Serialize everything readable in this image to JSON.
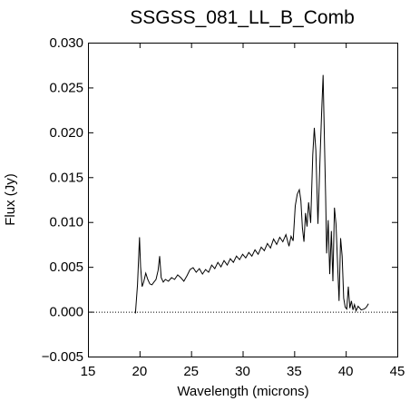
{
  "chart_data": {
    "type": "line",
    "title": "SSGSS_081_LL_B_Comb",
    "xlabel": "Wavelength (microns)",
    "ylabel": "Flux (Jy)",
    "xlim": [
      15,
      45
    ],
    "ylim": [
      -0.005,
      0.03
    ],
    "x_ticks": [
      15,
      20,
      25,
      30,
      35,
      40,
      45
    ],
    "x_tick_labels": [
      "15",
      "20",
      "25",
      "30",
      "35",
      "40",
      "45"
    ],
    "y_ticks": [
      -0.005,
      0.0,
      0.005,
      0.01,
      0.015,
      0.02,
      0.025,
      0.03
    ],
    "y_tick_labels": [
      "−0.005",
      "0.000",
      "0.005",
      "0.010",
      "0.015",
      "0.020",
      "0.025",
      "0.030"
    ],
    "grid": false,
    "legend": false,
    "reference_line": {
      "y": 0.0,
      "style": "dotted"
    },
    "line_color": "#000000",
    "series": [
      {
        "x": [
          19.6,
          19.8,
          20.0,
          20.1,
          20.25,
          20.4,
          20.6,
          20.8,
          21.0,
          21.2,
          21.4,
          21.6,
          21.8,
          21.95,
          22.1,
          22.3,
          22.5,
          22.8,
          23.1,
          23.4,
          23.7,
          24.0,
          24.3,
          24.6,
          24.9,
          25.2,
          25.5,
          25.8,
          26.1,
          26.4,
          26.7,
          27.0,
          27.3,
          27.6,
          27.9,
          28.2,
          28.5,
          28.8,
          29.1,
          29.4,
          29.7,
          30.0,
          30.3,
          30.6,
          30.9,
          31.2,
          31.5,
          31.8,
          32.1,
          32.4,
          32.7,
          33.0,
          33.3,
          33.6,
          33.9,
          34.2,
          34.5,
          34.7,
          34.9,
          35.1,
          35.3,
          35.5,
          35.65,
          35.8,
          35.95,
          36.1,
          36.25,
          36.4,
          36.6,
          36.8,
          36.95,
          37.1,
          37.3,
          37.5,
          37.65,
          37.8,
          37.95,
          38.05,
          38.15,
          38.3,
          38.45,
          38.6,
          38.75,
          38.9,
          39.05,
          39.2,
          39.35,
          39.5,
          39.65,
          39.8,
          39.95,
          40.1,
          40.25,
          40.4,
          40.55,
          40.7,
          40.85,
          41.0,
          41.2,
          41.5,
          41.8,
          42.0,
          42.2
        ],
        "y": [
          -0.0002,
          0.003,
          0.0083,
          0.005,
          0.0028,
          0.0033,
          0.0043,
          0.0036,
          0.0031,
          0.003,
          0.0033,
          0.0036,
          0.0046,
          0.0062,
          0.0038,
          0.0033,
          0.0036,
          0.0034,
          0.0038,
          0.0036,
          0.0041,
          0.0038,
          0.0034,
          0.004,
          0.0047,
          0.0049,
          0.0044,
          0.0048,
          0.0042,
          0.0047,
          0.0044,
          0.0052,
          0.0048,
          0.0055,
          0.005,
          0.0057,
          0.0052,
          0.0059,
          0.0055,
          0.0062,
          0.0058,
          0.0064,
          0.006,
          0.0066,
          0.0062,
          0.0069,
          0.0064,
          0.0072,
          0.0068,
          0.0076,
          0.0071,
          0.0081,
          0.0075,
          0.0083,
          0.0078,
          0.0086,
          0.0073,
          0.0084,
          0.0079,
          0.0118,
          0.0131,
          0.0136,
          0.0124,
          0.0093,
          0.0078,
          0.011,
          0.0095,
          0.0122,
          0.0099,
          0.0175,
          0.0205,
          0.018,
          0.0098,
          0.017,
          0.022,
          0.0264,
          0.018,
          0.0128,
          0.0065,
          0.0102,
          0.0042,
          0.009,
          0.0034,
          0.0116,
          0.0098,
          0.0055,
          0.0012,
          0.0082,
          0.0062,
          0.0015,
          0.0005,
          0.0003,
          0.0028,
          0.0004,
          0.0012,
          0.0002,
          0.0008,
          0.0001,
          0.0006,
          0.0002,
          0.0003,
          0.0005,
          0.0009
        ]
      }
    ]
  }
}
